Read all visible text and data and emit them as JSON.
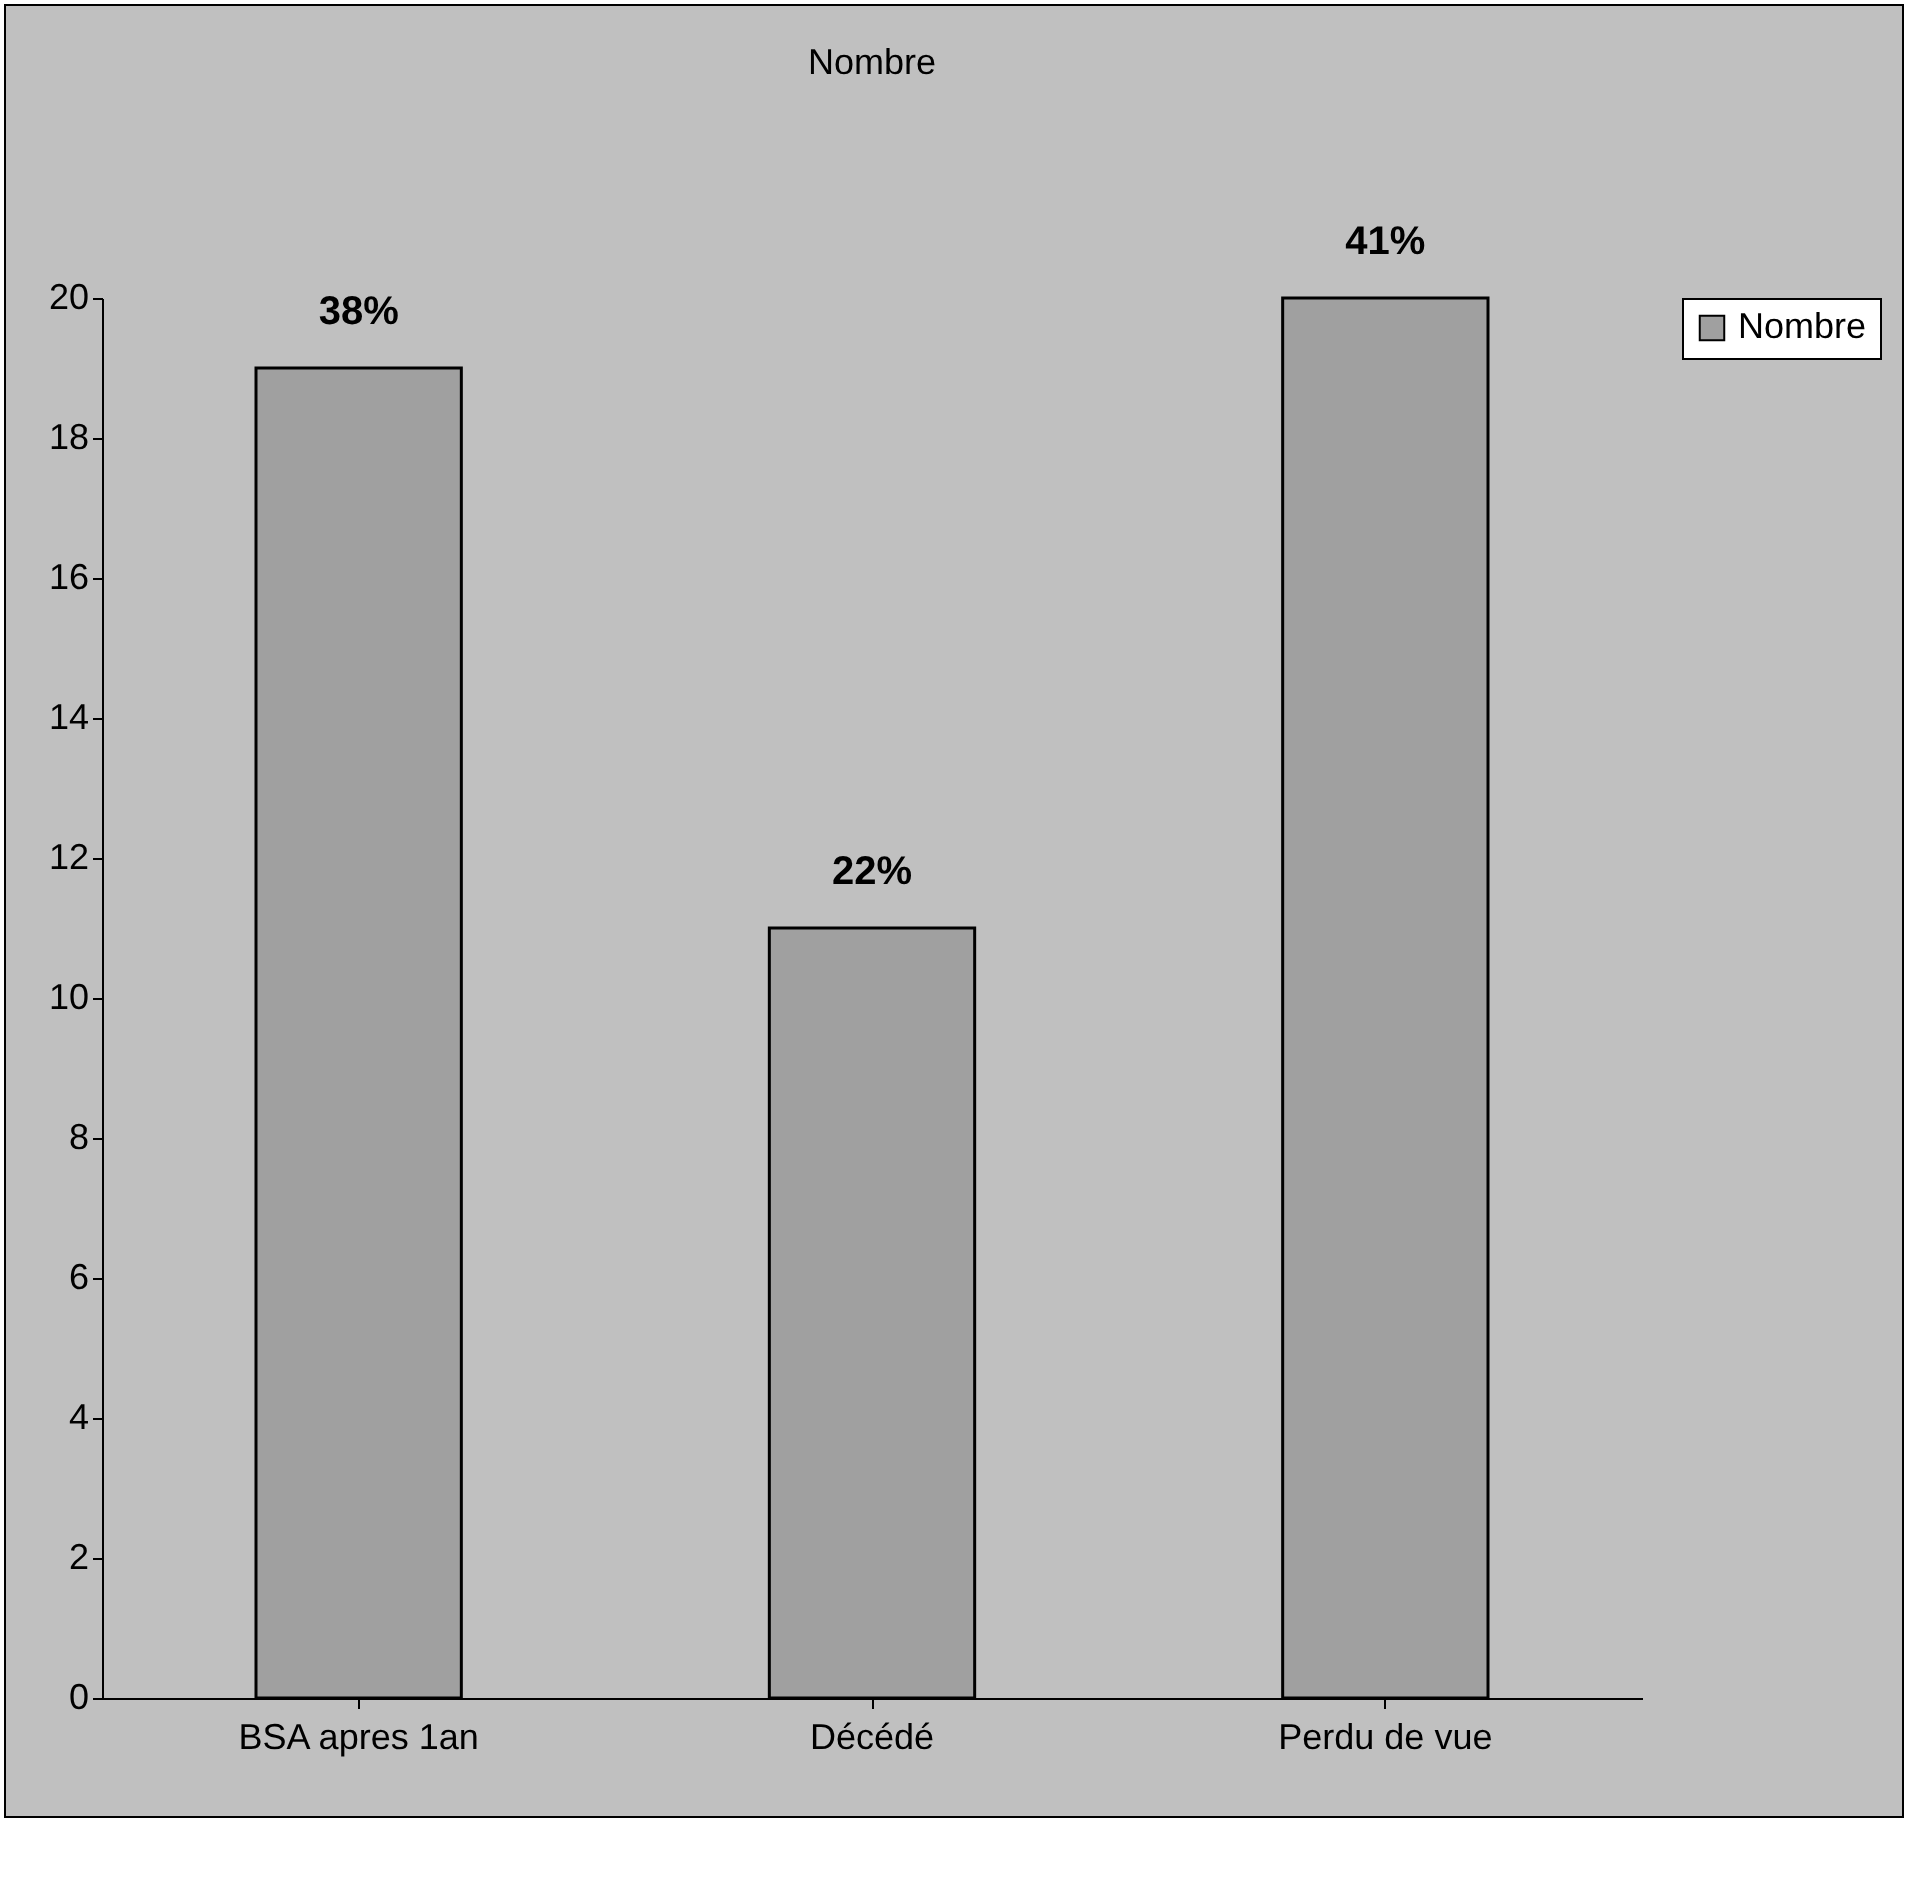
{
  "chart_data": {
    "type": "bar",
    "title": "Nombre",
    "categories": [
      "BSA apres 1an",
      "Décédé",
      "Perdu de vue"
    ],
    "series": [
      {
        "name": "Nombre",
        "color": "#a0a0a0",
        "values": [
          19,
          11,
          20
        ]
      }
    ],
    "annotations": [
      {
        "text": "38%",
        "x": "BSA apres 1an",
        "y": 19
      },
      {
        "text": "22%",
        "x": "Décédé",
        "y": 11
      },
      {
        "text": "41%",
        "x": "Perdu de vue",
        "y": 20
      }
    ],
    "ylim": [
      0,
      20
    ],
    "yticks": [
      0,
      2,
      4,
      6,
      8,
      10,
      12,
      14,
      16,
      18,
      20
    ],
    "grid": false,
    "legend": "right"
  }
}
